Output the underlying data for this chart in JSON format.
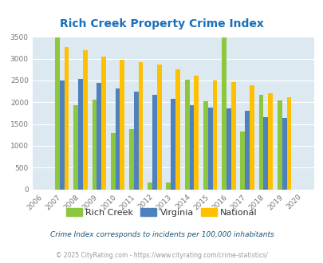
{
  "title": "Rich Creek Property Crime Index",
  "years": [
    "2006",
    "2007",
    "2008",
    "2009",
    "2010",
    "2011",
    "2012",
    "2013",
    "2014",
    "2015",
    "2016",
    "2017",
    "2018",
    "2019",
    "2020"
  ],
  "rich_creek": [
    0,
    3480,
    1930,
    2050,
    1300,
    1390,
    150,
    150,
    2510,
    2020,
    3480,
    1320,
    2160,
    2040,
    0
  ],
  "virginia": [
    0,
    2490,
    2540,
    2450,
    2320,
    2250,
    2160,
    2070,
    1940,
    1870,
    1860,
    1800,
    1650,
    1630,
    0
  ],
  "national": [
    0,
    3260,
    3200,
    3050,
    2970,
    2920,
    2860,
    2750,
    2610,
    2500,
    2470,
    2390,
    2210,
    2110,
    0
  ],
  "rich_creek_color": "#8dc63f",
  "virginia_color": "#4f81bd",
  "national_color": "#ffc000",
  "plot_bg_color": "#dce9f0",
  "title_color": "#1a6fba",
  "ylim": [
    0,
    3500
  ],
  "yticks": [
    0,
    500,
    1000,
    1500,
    2000,
    2500,
    3000,
    3500
  ],
  "footnote1": "Crime Index corresponds to incidents per 100,000 inhabitants",
  "footnote2": "© 2025 CityRating.com - https://www.cityrating.com/crime-statistics/",
  "legend_labels": [
    "Rich Creek",
    "Virginia",
    "National"
  ],
  "bar_width": 0.25
}
